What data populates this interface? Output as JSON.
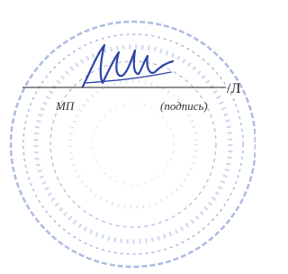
{
  "signature_block": {
    "name_prefix": "/Л",
    "stamp_label": "МП",
    "signature_label": "(подпись)"
  }
}
